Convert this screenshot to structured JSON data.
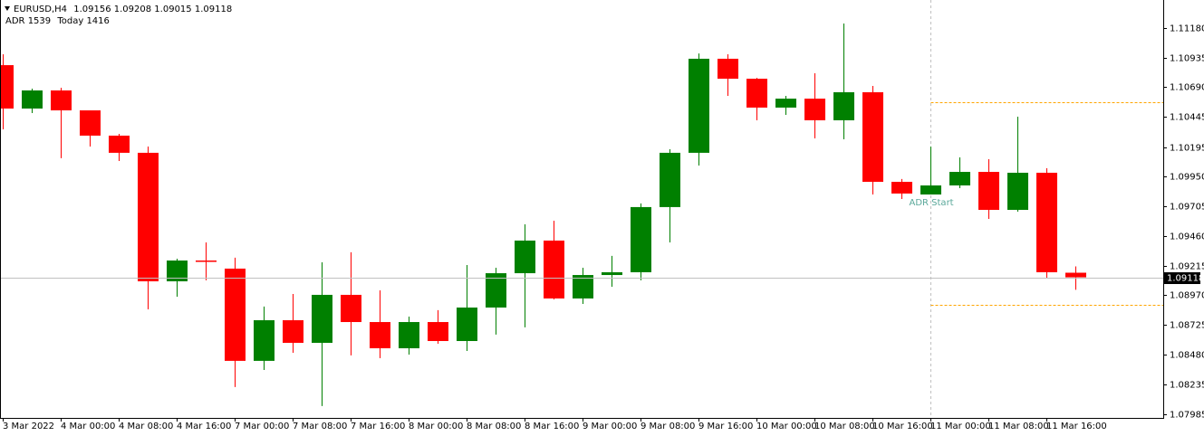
{
  "chart_data": {
    "type": "candlestick",
    "symbol": "EURUSD,H4",
    "indicator": {
      "name": "ADR",
      "adr": 1539,
      "today_label": "Today",
      "today": 1416,
      "label": "ADR Start",
      "start": 32,
      "high": 1.10566,
      "low": 1.0889,
      "color": "#ffa500",
      "label_color": "#5aa89a"
    },
    "categories": [
      "3 Mar 2022",
      null,
      "4 Mar 00:00",
      null,
      "4 Mar 08:00",
      null,
      "4 Mar 16:00",
      null,
      "7 Mar 00:00",
      null,
      "7 Mar 08:00",
      null,
      "7 Mar 16:00",
      null,
      "8 Mar 00:00",
      null,
      "8 Mar 08:00",
      null,
      "8 Mar 16:00",
      null,
      "9 Mar 00:00",
      null,
      "9 Mar 08:00",
      null,
      "9 Mar 16:00",
      null,
      "10 Mar 00:00",
      null,
      "10 Mar 08:00",
      null,
      "10 Mar 16:00",
      null,
      "11 Mar 00:00",
      null,
      "11 Mar 08:00",
      null,
      "11 Mar 16:00",
      null
    ],
    "open": [
      1.10873,
      1.10514,
      1.10664,
      1.10499,
      1.1029,
      1.10148,
      1.09085,
      1.09257,
      1.0919,
      1.08427,
      1.08763,
      1.08576,
      1.08973,
      1.08748,
      1.08531,
      1.08748,
      1.08591,
      1.08868,
      1.09152,
      1.09422,
      1.08943,
      1.09137,
      1.0916,
      1.09699,
      1.10148,
      1.10926,
      1.10761,
      1.10522,
      1.10596,
      1.10417,
      1.10649,
      1.09908,
      1.09803,
      1.09878,
      1.0999,
      1.09676,
      1.09983,
      1.09156
    ],
    "high": [
      1.10963,
      1.10679,
      1.10686,
      1.10499,
      1.10305,
      1.102,
      1.09272,
      1.09407,
      1.0928,
      1.08876,
      1.0898,
      1.09242,
      1.09325,
      1.0901,
      1.08793,
      1.08846,
      1.0922,
      1.09197,
      1.09556,
      1.09586,
      1.09197,
      1.09295,
      1.09729,
      1.10177,
      1.1097,
      1.10963,
      1.10768,
      1.10619,
      1.10806,
      1.11217,
      1.10701,
      1.09931,
      1.102,
      1.1011,
      1.10095,
      1.10447,
      1.1002,
      1.09208
    ],
    "low": [
      1.10342,
      1.10477,
      1.10103,
      1.102,
      1.1008,
      1.08853,
      1.08958,
      1.09093,
      1.0821,
      1.08352,
      1.08494,
      1.08053,
      1.08472,
      1.08449,
      1.08479,
      1.08569,
      1.08509,
      1.08644,
      1.08704,
      1.08935,
      1.08898,
      1.0904,
      1.09093,
      1.09407,
      1.10043,
      1.10619,
      1.10417,
      1.10462,
      1.10267,
      1.1026,
      1.09803,
      1.09766,
      1.09803,
      1.09856,
      1.09601,
      1.09661,
      1.09115,
      1.09015
    ],
    "close": [
      1.10514,
      1.10664,
      1.10499,
      1.1029,
      1.10148,
      1.09085,
      1.09257,
      1.0925,
      1.08427,
      1.08763,
      1.08576,
      1.08973,
      1.08748,
      1.08531,
      1.08748,
      1.08591,
      1.08868,
      1.09152,
      1.09422,
      1.08943,
      1.09137,
      1.0916,
      1.09699,
      1.10148,
      1.10926,
      1.10761,
      1.10522,
      1.10596,
      1.10417,
      1.10649,
      1.09908,
      1.09811,
      1.09878,
      1.0999,
      1.09676,
      1.09983,
      1.0916,
      1.09118
    ],
    "up_color": "#008000",
    "down_color": "#ff0000",
    "ylim": [
      1.07955,
      1.11412
    ],
    "yticks": [
      {
        "value": 1.1118,
        "label": "1.11180"
      },
      1.10935,
      {
        "value": 1.1069,
        "label": "1.10690"
      },
      1.10445,
      1.10195,
      {
        "value": 1.0995,
        "label": "1.09950"
      },
      1.09705,
      {
        "value": 1.0946,
        "label": "1.09460"
      },
      1.09215,
      {
        "value": 1.0897,
        "label": "1.08970"
      },
      1.08725,
      {
        "value": 1.0848,
        "label": "1.08480"
      },
      1.08235,
      1.07985
    ],
    "grid": false,
    "price_line": true
  }
}
